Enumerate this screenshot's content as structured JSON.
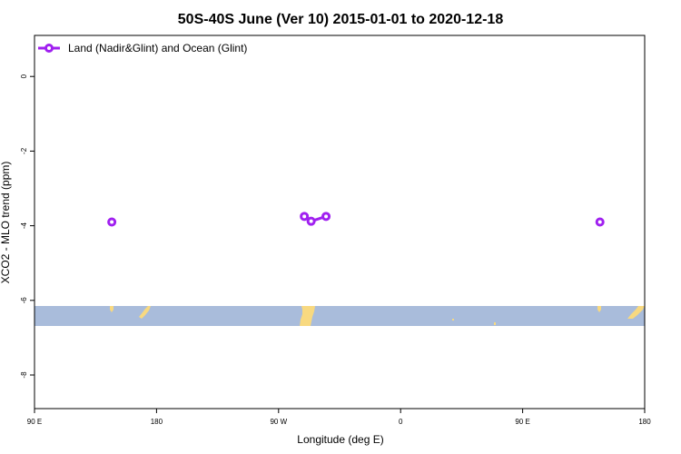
{
  "chart_data": {
    "type": "line",
    "title": "50S-40S June (Ver 10)   2015-01-01 to 2020-12-18",
    "xlabel": "Longitude (deg E)",
    "ylabel": "XCO2 - MLO trend (ppm)",
    "x_ticks": [
      {
        "lon": 90,
        "label": "90 E"
      },
      {
        "lon": 180,
        "label": "180"
      },
      {
        "lon": 270,
        "label": "90 W"
      },
      {
        "lon": 360,
        "label": "0"
      },
      {
        "lon": 450,
        "label": "90 E"
      },
      {
        "lon": 540,
        "label": "180"
      }
    ],
    "y_ticks": [
      0,
      -2,
      -4,
      -6,
      -8
    ],
    "xlim": [
      90,
      540
    ],
    "ylim": [
      -8.9,
      1.1
    ],
    "grid": false,
    "legend_position": "top-left",
    "series": [
      {
        "name": "Land (Nadir&Glint) and Ocean (Glint)",
        "color": "#a020f0",
        "segments": [
          [
            {
              "x": 147,
              "y": -3.9
            }
          ],
          [
            {
              "x": 289,
              "y": -3.75
            },
            {
              "x": 294,
              "y": -3.88
            },
            {
              "x": 305,
              "y": -3.75
            }
          ],
          [
            {
              "x": 507,
              "y": -3.9
            }
          ]
        ]
      }
    ],
    "map_band": {
      "ocean_color": "#a9bcdb",
      "land_color": "#f8d980",
      "lat_range": [
        -50,
        -40
      ]
    }
  }
}
